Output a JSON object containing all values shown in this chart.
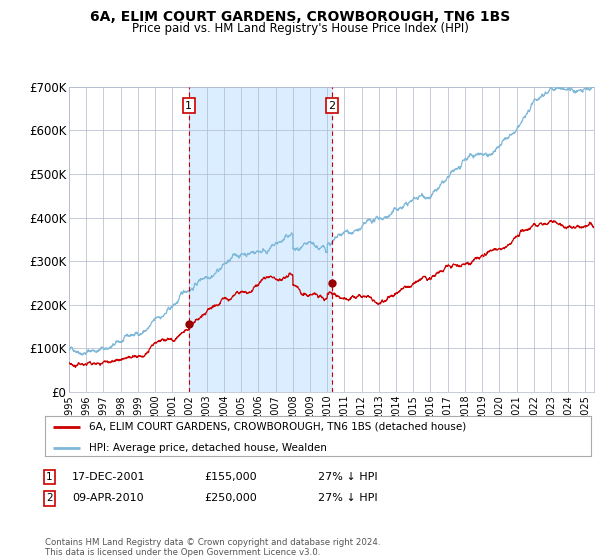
{
  "title": "6A, ELIM COURT GARDENS, CROWBOROUGH, TN6 1BS",
  "subtitle": "Price paid vs. HM Land Registry's House Price Index (HPI)",
  "hpi_label": "HPI: Average price, detached house, Wealden",
  "property_label": "6A, ELIM COURT GARDENS, CROWBOROUGH, TN6 1BS (detached house)",
  "purchase1": {
    "date_num": 2001.96,
    "price": 155000,
    "label": "1",
    "date_str": "17-DEC-2001",
    "pct": "27% ↓ HPI"
  },
  "purchase2": {
    "date_num": 2010.27,
    "price": 250000,
    "label": "2",
    "date_str": "09-APR-2010",
    "pct": "27% ↓ HPI"
  },
  "xmin": 1995.0,
  "xmax": 2025.5,
  "ymin": 0,
  "ymax": 700000,
  "yticks": [
    0,
    100000,
    200000,
    300000,
    400000,
    500000,
    600000,
    700000
  ],
  "ytick_labels": [
    "£0",
    "£100K",
    "£200K",
    "£300K",
    "£400K",
    "£500K",
    "£600K",
    "£700K"
  ],
  "hpi_color": "#7fb8d8",
  "property_color": "#cc0000",
  "shade_color": "#daeeff",
  "vline_color": "#cc0000",
  "background_color": "#ffffff",
  "grid_color": "#b0b8cc",
  "footnote": "Contains HM Land Registry data © Crown copyright and database right 2024.\nThis data is licensed under the Open Government Licence v3.0."
}
